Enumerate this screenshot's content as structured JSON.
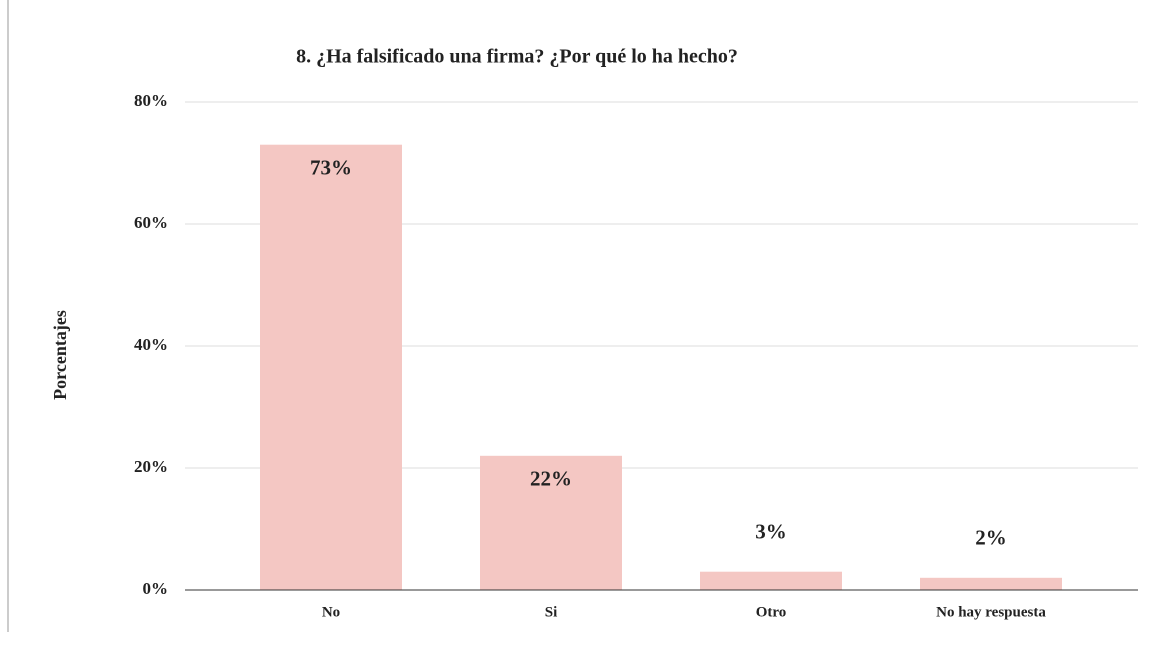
{
  "chart_data": {
    "type": "bar",
    "title": "8.  ¿Ha falsificado una firma? ¿Por qué lo ha hecho?",
    "y_label": "Porcentajes",
    "categories": [
      "No",
      "Si",
      "Otro",
      "No hay respuesta"
    ],
    "values": [
      73,
      22,
      3,
      2
    ],
    "value_labels": [
      "73%",
      "22%",
      "3%",
      "2%"
    ],
    "color": "#f4c7c3",
    "ylim": [
      0,
      80
    ],
    "yticks": [
      {
        "value": 0,
        "label": "0%"
      },
      {
        "value": 20,
        "label": "20%"
      },
      {
        "value": 40,
        "label": "40%"
      },
      {
        "value": 60,
        "label": "60%"
      },
      {
        "value": 80,
        "label": "80%"
      }
    ],
    "grid": true
  }
}
